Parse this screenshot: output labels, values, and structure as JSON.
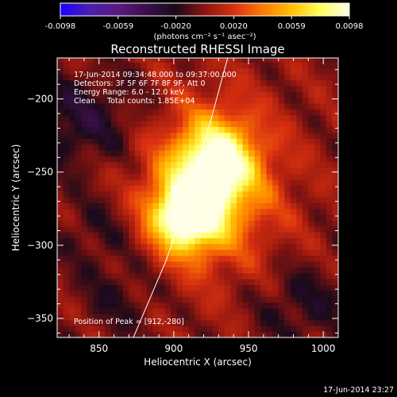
{
  "colors": {
    "background": "#000000",
    "colormap": [
      "#1a00ff",
      "#4a1fb0",
      "#5a1a80",
      "#3a0f4a",
      "#1a0a1a",
      "#8a1410",
      "#d83010",
      "#ff7a00",
      "#ffc000",
      "#ffff60",
      "#ffffe8"
    ]
  },
  "colorbar": {
    "ticks": [
      "-0.0098",
      "-0.0059",
      "-0.0020",
      "0.0020",
      "0.0059",
      "0.0098"
    ],
    "unit_label": "(photons cm⁻² s⁻¹ asec⁻²)"
  },
  "header": {
    "time": "17-Jun-2014 09:34:48.000 to 09:37:00.000",
    "detectors": "Detectors: 3F 5F 6F 7F 8F 9F, Att 0",
    "energy": "Energy Range: 6.0 - 12.0 keV",
    "clean": "Clean     Total counts: 1.85E+04"
  },
  "peak_label": "Position of Peak = [912,-280]",
  "footer_timestamp": "17-Jun-2014 23:27",
  "chart_data": {
    "type": "heatmap",
    "title": "Reconstructed RHESSI Image",
    "xlabel": "Heliocentric X (arcsec)",
    "ylabel": "Heliocentric Y (arcsec)",
    "xlim": [
      822,
      1010
    ],
    "ylim": [
      -363,
      -172
    ],
    "zlim": [
      -0.0098,
      0.0098
    ],
    "xticks": [
      850,
      900,
      950,
      1000
    ],
    "yticks": [
      -350,
      -300,
      -250,
      -200
    ],
    "pixel_size_arcsec": 4,
    "peak": [
      912,
      -280
    ],
    "sources": [
      {
        "x": 909,
        "y": -280,
        "sx": 16,
        "sy": 16,
        "amp": 0.0098
      },
      {
        "x": 928,
        "y": -244,
        "sx": 18,
        "sy": 20,
        "amp": 0.0082
      },
      {
        "x": 924,
        "y": -262,
        "sx": 34,
        "sy": 40,
        "amp": 0.0044
      }
    ],
    "negative_lobes": [
      {
        "x": 838,
        "y": -215,
        "sx": 30,
        "sy": 22,
        "amp": -0.0026
      },
      {
        "x": 850,
        "y": -290,
        "sx": 20,
        "sy": 18,
        "amp": -0.0016
      },
      {
        "x": 985,
        "y": -340,
        "sx": 22,
        "sy": 20,
        "amp": -0.002
      },
      {
        "x": 865,
        "y": -335,
        "sx": 20,
        "sy": 18,
        "amp": -0.0016
      }
    ],
    "limb": {
      "points": [
        [
          873,
          -363
        ],
        [
          895,
          -310
        ],
        [
          912,
          -260
        ],
        [
          926,
          -210
        ],
        [
          936,
          -172
        ]
      ]
    }
  }
}
